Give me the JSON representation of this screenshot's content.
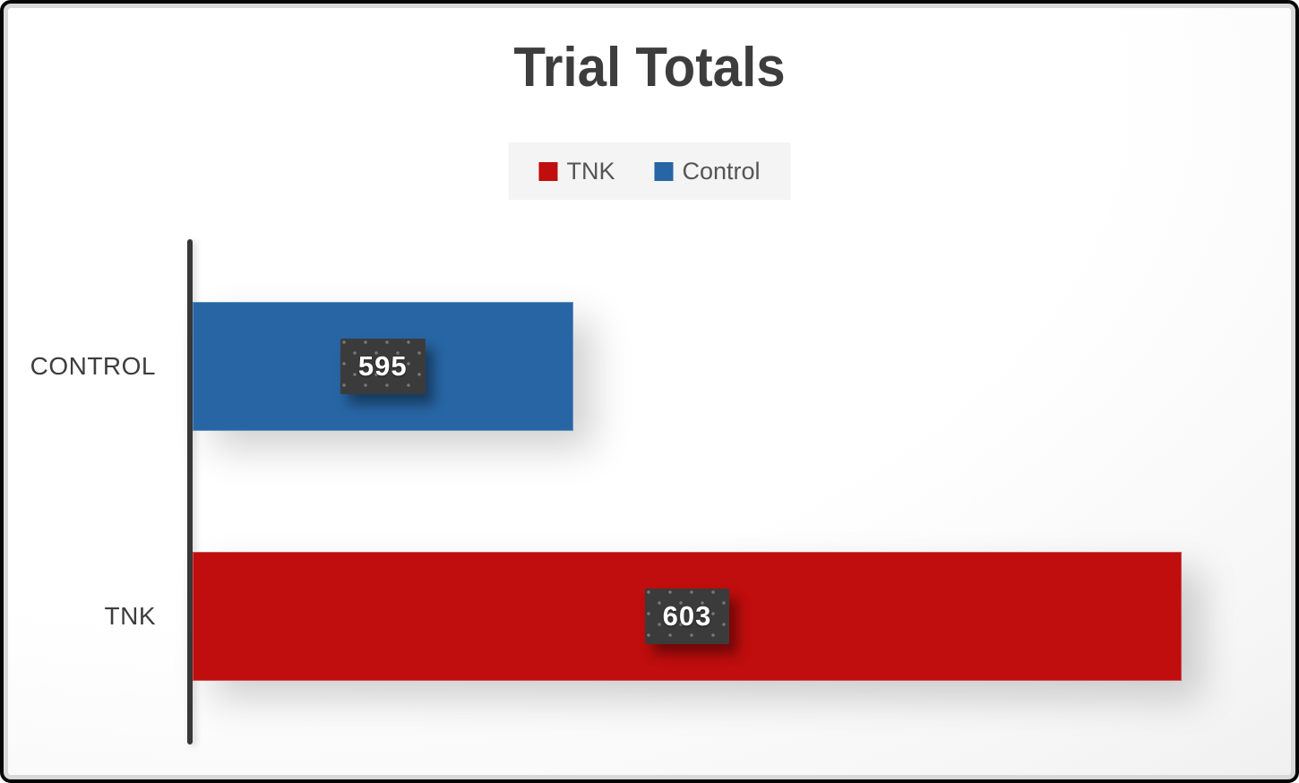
{
  "chart_data": {
    "type": "bar",
    "orientation": "horizontal",
    "title": "Trial Totals",
    "categories": [
      "CONTROL",
      "TNK"
    ],
    "values": [
      595,
      603
    ],
    "colors": [
      "#2765A4",
      "#C00D0D"
    ],
    "data_labels": [
      "595",
      "603"
    ],
    "xlim": [
      590,
      603
    ],
    "xlabel": "",
    "ylabel": "",
    "grid": false,
    "legend_position": "top-center"
  },
  "legend": {
    "items": [
      {
        "label": "TNK",
        "color": "#C00D0D"
      },
      {
        "label": "Control",
        "color": "#2765A4"
      }
    ]
  },
  "styles": {
    "title_color": "#3D3D3D",
    "axis_color": "#383838",
    "category_label_color": "#3D3D3D",
    "value_chip_bg": "#3B3B3B",
    "value_chip_text": "#FFFFFF",
    "legend_bg": "#F4F4F4",
    "legend_text": "#555555",
    "frame_border": "#060606",
    "frame_inner_stroke": "#D9D9D9"
  }
}
